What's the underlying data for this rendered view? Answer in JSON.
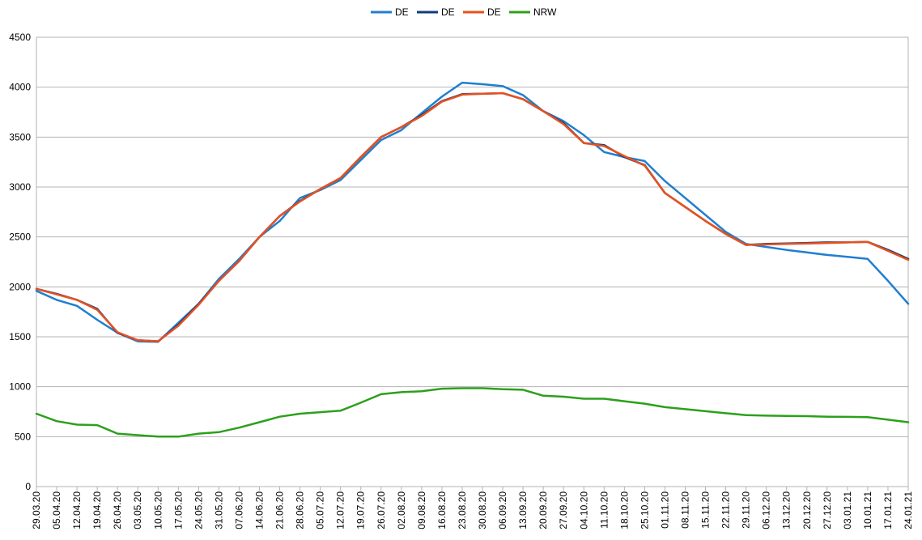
{
  "chart_data": {
    "type": "line",
    "title": "",
    "xlabel": "",
    "ylabel": "",
    "ylim": [
      0,
      4500
    ],
    "yticks": [
      0,
      500,
      1000,
      1500,
      2000,
      2500,
      3000,
      3500,
      4000,
      4500
    ],
    "grid": "horizontal",
    "legend_position": "top-center",
    "categories": [
      "29.03.20",
      "05.04.20",
      "12.04.20",
      "19.04.20",
      "26.04.20",
      "03.05.20",
      "10.05.20",
      "17.05.20",
      "24.05.20",
      "31.05.20",
      "07.06.20",
      "14.06.20",
      "21.06.20",
      "28.06.20",
      "05.07.20",
      "12.07.20",
      "19.07.20",
      "26.07.20",
      "02.08.20",
      "09.08.20",
      "16.08.20",
      "23.08.20",
      "30.08.20",
      "06.09.20",
      "13.09.20",
      "20.09.20",
      "27.09.20",
      "04.10.20",
      "11.10.20",
      "18.10.20",
      "25.10.20",
      "01.11.20",
      "08.11.20",
      "15.11.20",
      "22.11.20",
      "29.11.20",
      "06.12.20",
      "13.12.20",
      "20.12.20",
      "27.12.20",
      "03.01.21",
      "10.01.21",
      "17.01.21",
      "24.01.21"
    ],
    "series": [
      {
        "name": "DE",
        "color": "#1f7fcf",
        "values": [
          1960,
          1870,
          1810,
          1670,
          1540,
          1455,
          1450,
          1640,
          1830,
          2080,
          2280,
          2500,
          2660,
          2890,
          2970,
          3070,
          3270,
          3470,
          3570,
          3740,
          3905,
          4045,
          4030,
          4010,
          3920,
          3760,
          3660,
          3520,
          3350,
          3300,
          3260,
          3060,
          2890,
          2720,
          2550,
          2430,
          2400,
          2370,
          2345,
          2320,
          2300,
          2280,
          2060,
          1830
        ]
      },
      {
        "name": "DE",
        "color": "#0f3d7a",
        "values": [
          1980,
          1930,
          1870,
          1780,
          1540,
          1465,
          1455,
          1620,
          1830,
          2060,
          2260,
          2500,
          2710,
          2860,
          2980,
          3090,
          3300,
          3500,
          3600,
          3720,
          3860,
          3930,
          3935,
          3940,
          3880,
          3760,
          3640,
          3440,
          3420,
          3300,
          3220,
          2940,
          2800,
          2660,
          2530,
          2420,
          2430,
          2435,
          2440,
          2445,
          2445,
          2450,
          2370,
          2280
        ]
      },
      {
        "name": "DE",
        "color": "#e8501e",
        "values": [
          1980,
          1925,
          1870,
          1770,
          1545,
          1465,
          1455,
          1610,
          1820,
          2060,
          2260,
          2500,
          2710,
          2855,
          2980,
          3090,
          3300,
          3500,
          3600,
          3710,
          3855,
          3925,
          3935,
          3940,
          3880,
          3760,
          3630,
          3440,
          3410,
          3310,
          3215,
          2940,
          2800,
          2660,
          2530,
          2420,
          2425,
          2430,
          2435,
          2440,
          2445,
          2450,
          2360,
          2270
        ]
      },
      {
        "name": "NRW",
        "color": "#2ca01c",
        "values": [
          730,
          655,
          620,
          615,
          530,
          515,
          500,
          500,
          530,
          545,
          590,
          645,
          700,
          730,
          745,
          760,
          840,
          925,
          945,
          955,
          980,
          985,
          985,
          975,
          970,
          910,
          900,
          880,
          880,
          855,
          830,
          795,
          775,
          755,
          735,
          715,
          710,
          708,
          705,
          700,
          698,
          695,
          670,
          645
        ]
      }
    ]
  }
}
